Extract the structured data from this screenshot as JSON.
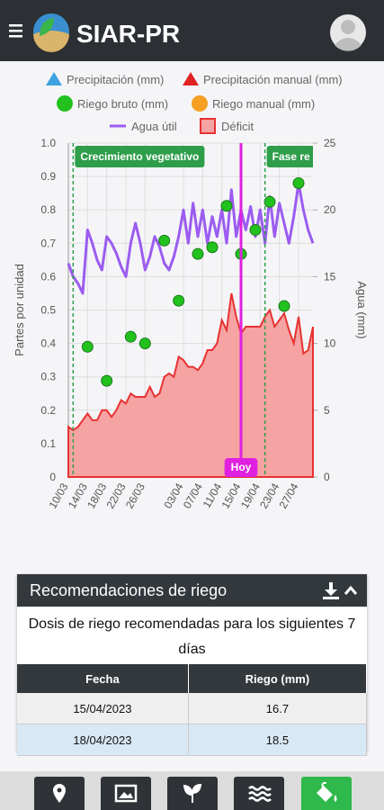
{
  "header": {
    "title": "SIAR-PR"
  },
  "chart_data": {
    "type": "line",
    "y_label": "Partes por unidad",
    "y2_label": "Agua (mm)",
    "categories": [
      "10/03",
      null,
      null,
      null,
      "14/03",
      null,
      null,
      null,
      "18/03",
      null,
      null,
      null,
      "22/03",
      null,
      null,
      null,
      "26/03",
      null,
      null,
      null,
      null,
      null,
      null,
      null,
      "03/04",
      null,
      null,
      null,
      "07/04",
      null,
      null,
      null,
      "11/04",
      null,
      null,
      null,
      "15/04",
      null,
      null,
      null,
      "19/04",
      null,
      null,
      null,
      "23/04",
      null,
      null,
      null,
      "27/04",
      null,
      null,
      null
    ],
    "ylim": [
      0,
      1
    ],
    "yticks": [
      0,
      0.1,
      0.2,
      0.3,
      0.4,
      0.5,
      0.6,
      0.7,
      0.8,
      0.9,
      {
        "value": 1,
        "label": "1.0"
      }
    ],
    "y2lim": [
      0,
      25
    ],
    "y2ticks": [
      0,
      5,
      10,
      15,
      20,
      25
    ],
    "grid": true,
    "series": [
      {
        "name": "Precipitación (mm)",
        "color": "#3ea2e0",
        "marker": "triangle",
        "axis": "y2",
        "values": [
          null,
          null,
          null,
          null,
          null,
          null,
          null,
          null,
          null,
          null,
          null,
          null,
          null,
          null,
          null,
          null,
          null,
          null,
          null,
          null,
          null,
          null,
          null,
          null,
          null,
          null,
          null,
          null,
          null,
          null,
          null,
          null,
          null,
          null,
          null,
          null,
          null,
          null,
          null,
          null,
          null,
          null,
          null,
          null,
          null,
          null,
          null,
          null,
          null,
          null,
          null,
          null
        ]
      },
      {
        "name": "Precipitación manual (mm)",
        "color": "#e02222",
        "marker": "triangle",
        "axis": "y2",
        "values": [
          null,
          null,
          null,
          null,
          null,
          null,
          null,
          null,
          null,
          null,
          null,
          null,
          null,
          null,
          null,
          null,
          null,
          null,
          null,
          null,
          null,
          null,
          null,
          null,
          null,
          null,
          null,
          null,
          null,
          null,
          null,
          null,
          null,
          null,
          null,
          null,
          null,
          null,
          null,
          null,
          null,
          null,
          null,
          null,
          null,
          null,
          null,
          null,
          null,
          null,
          null,
          null
        ]
      },
      {
        "name": "Riego bruto (mm)",
        "color": "#22c11e",
        "marker": "circle",
        "axis": "y2",
        "values": [
          null,
          null,
          null,
          null,
          9.75,
          null,
          null,
          null,
          7.2,
          null,
          null,
          null,
          null,
          10.5,
          null,
          null,
          10,
          null,
          null,
          null,
          17.7,
          null,
          null,
          13.2,
          null,
          null,
          null,
          16.7,
          null,
          null,
          17.2,
          null,
          null,
          20.3,
          null,
          null,
          16.7,
          null,
          null,
          18.5,
          null,
          null,
          20.6,
          null,
          null,
          12.8,
          null,
          null,
          22,
          null,
          null,
          null
        ]
      },
      {
        "name": "Riego manual (mm)",
        "color": "#f5a020",
        "marker": "circle",
        "axis": "y2",
        "values": [
          null,
          null,
          null,
          null,
          null,
          null,
          null,
          null,
          null,
          null,
          null,
          null,
          null,
          null,
          null,
          null,
          null,
          null,
          null,
          null,
          null,
          null,
          null,
          null,
          null,
          null,
          null,
          null,
          null,
          null,
          null,
          null,
          null,
          null,
          null,
          null,
          null,
          null,
          null,
          null,
          null,
          null,
          null,
          null,
          null,
          null,
          null,
          null,
          null,
          null,
          null,
          null
        ]
      },
      {
        "name": "Agua útil",
        "color": "#9b5cf0",
        "marker": "line",
        "values": [
          0.64,
          0.6,
          0.58,
          0.55,
          0.74,
          0.7,
          0.65,
          0.62,
          0.72,
          0.7,
          0.67,
          0.63,
          0.6,
          0.7,
          0.76,
          0.7,
          0.62,
          0.66,
          0.72,
          0.69,
          0.64,
          0.62,
          0.66,
          0.72,
          0.8,
          0.7,
          0.82,
          0.72,
          0.8,
          0.7,
          0.78,
          0.72,
          0.8,
          0.7,
          0.86,
          0.72,
          0.8,
          0.74,
          0.81,
          0.72,
          0.8,
          0.7,
          0.84,
          0.72,
          0.82,
          0.76,
          0.7,
          0.78,
          0.88,
          0.8,
          0.74,
          0.7
        ]
      },
      {
        "name": "Déficit",
        "color": "#e83232",
        "fill": "#f5a3a3",
        "marker": "area",
        "values": [
          0.15,
          0.14,
          0.15,
          0.17,
          0.19,
          0.17,
          0.17,
          0.2,
          0.2,
          0.18,
          0.2,
          0.23,
          0.22,
          0.25,
          0.24,
          0.24,
          0.24,
          0.27,
          0.24,
          0.25,
          0.3,
          0.31,
          0.3,
          0.36,
          0.35,
          0.33,
          0.33,
          0.32,
          0.34,
          0.38,
          0.38,
          0.4,
          0.47,
          0.44,
          0.55,
          0.48,
          0.43,
          0.45,
          0.45,
          0.45,
          0.45,
          0.48,
          0.5,
          0.45,
          0.47,
          0.49,
          0.44,
          0.4,
          0.48,
          0.37,
          0.38,
          0.45
        ]
      }
    ],
    "annotations": [
      {
        "text": "Crecimiento vegetativo",
        "index": 1,
        "color": "#2e9e4a",
        "style": "dashed"
      },
      {
        "text": "Fase re",
        "index": 41,
        "color": "#2e9e4a",
        "style": "dashed"
      },
      {
        "text": "Hoy",
        "index": 36,
        "color": "#e020e0",
        "style": "solid"
      }
    ]
  },
  "recommendations": {
    "title": "Recomendaciones de riego",
    "description": "Dosis de riego recomendadas para los siguientes 7 días",
    "table": {
      "columns": [
        "Fecha",
        "Riego (mm)"
      ],
      "rows": [
        [
          "15/04/2023",
          16.7
        ],
        [
          "18/04/2023",
          18.5
        ]
      ]
    }
  }
}
